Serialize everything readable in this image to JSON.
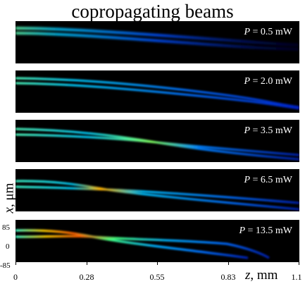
{
  "title": "copropagating beams",
  "panels": [
    {
      "power_var": "P",
      "power_text": " = 0.5 mW"
    },
    {
      "power_var": "P",
      "power_text": " = 2.0 mW"
    },
    {
      "power_var": "P",
      "power_text": " = 3.5 mW"
    },
    {
      "power_var": "P",
      "power_text": " = 6.5 mW"
    },
    {
      "power_var": "P",
      "power_text": " = 13.5 mW"
    }
  ],
  "y_axis": {
    "var": "x",
    "unit_text": ", μm",
    "ticks": [
      "85",
      "0",
      "-85"
    ]
  },
  "x_axis": {
    "var": "z",
    "unit_text": ", mm",
    "ticks": [
      "0",
      "0.28",
      "0.55",
      "0.83",
      "1.1"
    ]
  },
  "colors": {
    "background": "#000000",
    "colormap": [
      "#00008b",
      "#0040ff",
      "#00c8ff",
      "#40ff80",
      "#ffd000",
      "#ff4000"
    ]
  }
}
